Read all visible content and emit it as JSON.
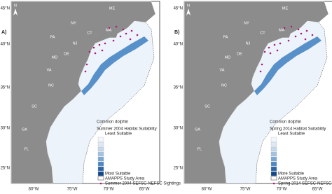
{
  "panels": [
    {
      "label": "A)",
      "lat_labels": [
        "45°N",
        "40°N",
        "35°N",
        "30°N",
        "25°N"
      ],
      "lon_labels": [
        "80°W",
        "75°W",
        "70°W",
        "65°W"
      ],
      "north": "N",
      "states": [
        "ME",
        "NY",
        "MA",
        "CT",
        "PA",
        "NJ",
        "DE",
        "MD",
        "VA",
        "NC",
        "SC",
        "GA",
        "FL"
      ],
      "legend": {
        "species": "Common dolphin",
        "title": "Summer 2004 Habitat Suitability",
        "low": "Least Suitable",
        "high": "Most Suitable",
        "area": "AMAPPS Study Area",
        "sightings": "Summer 2004 SEFSC-NEFSC Sightings"
      }
    },
    {
      "label": "B)",
      "lat_labels": [
        "45°N",
        "40°N",
        "35°N",
        "30°N",
        "25°N"
      ],
      "lon_labels": [
        "80°W",
        "75°W",
        "70°W",
        "65°W"
      ],
      "north": "N",
      "states": [
        "ME",
        "NY",
        "MA",
        "CT",
        "PA",
        "NJ",
        "DE",
        "MD",
        "VA",
        "NC",
        "SC",
        "GA",
        "FL"
      ],
      "legend": {
        "species": "Common dolphin",
        "title": "Spring 2014 Habitat Suitability",
        "low": "Least Suitable",
        "high": "More Suitable",
        "area": "AMAPPS Study Area",
        "sightings": "Spring 2014 SEFSC-NEFSC Sightings"
      }
    }
  ]
}
